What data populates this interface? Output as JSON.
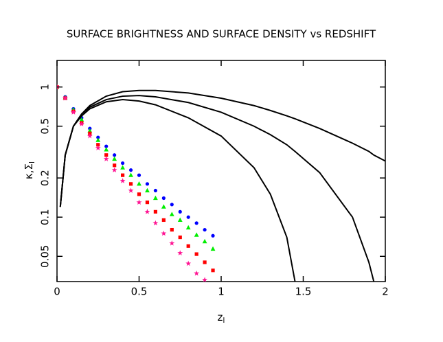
{
  "chart_data": {
    "type": "scatter",
    "title": "SURFACE BRIGHTNESS AND SURFACE DENSITY vs REDSHIFT",
    "x_label": "z",
    "x_label_sub": "l",
    "y_label": "κ,Σ",
    "y_label_sub": "l",
    "xlim": [
      0,
      2
    ],
    "xticks": [
      0,
      0.5,
      1,
      1.5,
      2
    ],
    "ylim": [
      0.032,
      1.6
    ],
    "yticks": [
      0.05,
      0.1,
      0.2,
      0.5,
      1
    ],
    "log_y": true,
    "series": [
      {
        "color": "#0000ff",
        "marker": "circle",
        "x": [
          0,
          0.05,
          0.1,
          0.15,
          0.2,
          0.25,
          0.3,
          0.35,
          0.4,
          0.45,
          0.5,
          0.55,
          0.6,
          0.65,
          0.7,
          0.75,
          0.8,
          0.85,
          0.9,
          0.95
        ],
        "values": [
          1.0,
          0.84,
          0.68,
          0.58,
          0.48,
          0.41,
          0.35,
          0.3,
          0.26,
          0.23,
          0.21,
          0.18,
          0.16,
          0.14,
          0.125,
          0.11,
          0.1,
          0.09,
          0.08,
          0.072
        ]
      },
      {
        "color": "#00ee00",
        "marker": "triangle",
        "x": [
          0,
          0.05,
          0.1,
          0.15,
          0.2,
          0.25,
          0.3,
          0.35,
          0.4,
          0.45,
          0.5,
          0.55,
          0.6,
          0.65,
          0.7,
          0.75,
          0.8,
          0.85,
          0.9,
          0.95
        ],
        "values": [
          1.0,
          0.83,
          0.67,
          0.56,
          0.46,
          0.39,
          0.33,
          0.28,
          0.24,
          0.21,
          0.18,
          0.16,
          0.14,
          0.12,
          0.105,
          0.095,
          0.083,
          0.073,
          0.065,
          0.057
        ]
      },
      {
        "color": "#ff0000",
        "marker": "square",
        "x": [
          0,
          0.05,
          0.1,
          0.15,
          0.2,
          0.25,
          0.3,
          0.35,
          0.4,
          0.45,
          0.5,
          0.55,
          0.6,
          0.65,
          0.7,
          0.75,
          0.8,
          0.85,
          0.9,
          0.95
        ],
        "values": [
          1.0,
          0.82,
          0.65,
          0.53,
          0.44,
          0.36,
          0.3,
          0.25,
          0.21,
          0.18,
          0.15,
          0.13,
          0.11,
          0.095,
          0.08,
          0.07,
          0.06,
          0.052,
          0.045,
          0.039
        ]
      },
      {
        "color": "#ff1493",
        "marker": "star",
        "x": [
          0,
          0.05,
          0.1,
          0.15,
          0.2,
          0.25,
          0.3,
          0.35,
          0.4,
          0.45,
          0.5,
          0.55,
          0.6,
          0.65,
          0.7,
          0.75,
          0.8,
          0.85,
          0.9
        ],
        "values": [
          1.0,
          0.82,
          0.64,
          0.52,
          0.42,
          0.34,
          0.28,
          0.23,
          0.19,
          0.16,
          0.13,
          0.11,
          0.09,
          0.075,
          0.063,
          0.053,
          0.044,
          0.037,
          0.033
        ]
      },
      {
        "color": "#000000",
        "marker": "line",
        "x": [
          0.02,
          0.05,
          0.1,
          0.15,
          0.2,
          0.3,
          0.4,
          0.5,
          0.6,
          0.8,
          1.0,
          1.2,
          1.3,
          1.4,
          1.45,
          1.6,
          1.8,
          1.9,
          1.93,
          2.0
        ],
        "values": [
          0.12,
          0.3,
          0.5,
          0.62,
          0.72,
          0.85,
          0.92,
          0.94,
          0.94,
          0.9,
          0.82,
          0.72,
          0.66,
          0.6,
          0.57,
          0.48,
          0.37,
          0.32,
          0.3,
          0.27
        ]
      },
      {
        "color": "#000000",
        "marker": "line",
        "x": [
          0.02,
          0.05,
          0.1,
          0.15,
          0.2,
          0.3,
          0.4,
          0.5,
          0.6,
          0.8,
          1.0,
          1.2,
          1.3,
          1.4,
          1.45,
          1.6,
          1.8,
          1.9,
          1.93
        ],
        "values": [
          0.12,
          0.3,
          0.5,
          0.62,
          0.7,
          0.8,
          0.85,
          0.86,
          0.84,
          0.76,
          0.64,
          0.5,
          0.43,
          0.36,
          0.32,
          0.22,
          0.1,
          0.045,
          0.032
        ]
      },
      {
        "color": "#000000",
        "marker": "line",
        "x": [
          0.02,
          0.05,
          0.1,
          0.15,
          0.2,
          0.3,
          0.4,
          0.5,
          0.6,
          0.8,
          1.0,
          1.2,
          1.3,
          1.4,
          1.45
        ],
        "values": [
          0.12,
          0.3,
          0.5,
          0.6,
          0.68,
          0.77,
          0.8,
          0.78,
          0.73,
          0.58,
          0.42,
          0.24,
          0.15,
          0.07,
          0.032
        ]
      }
    ]
  }
}
